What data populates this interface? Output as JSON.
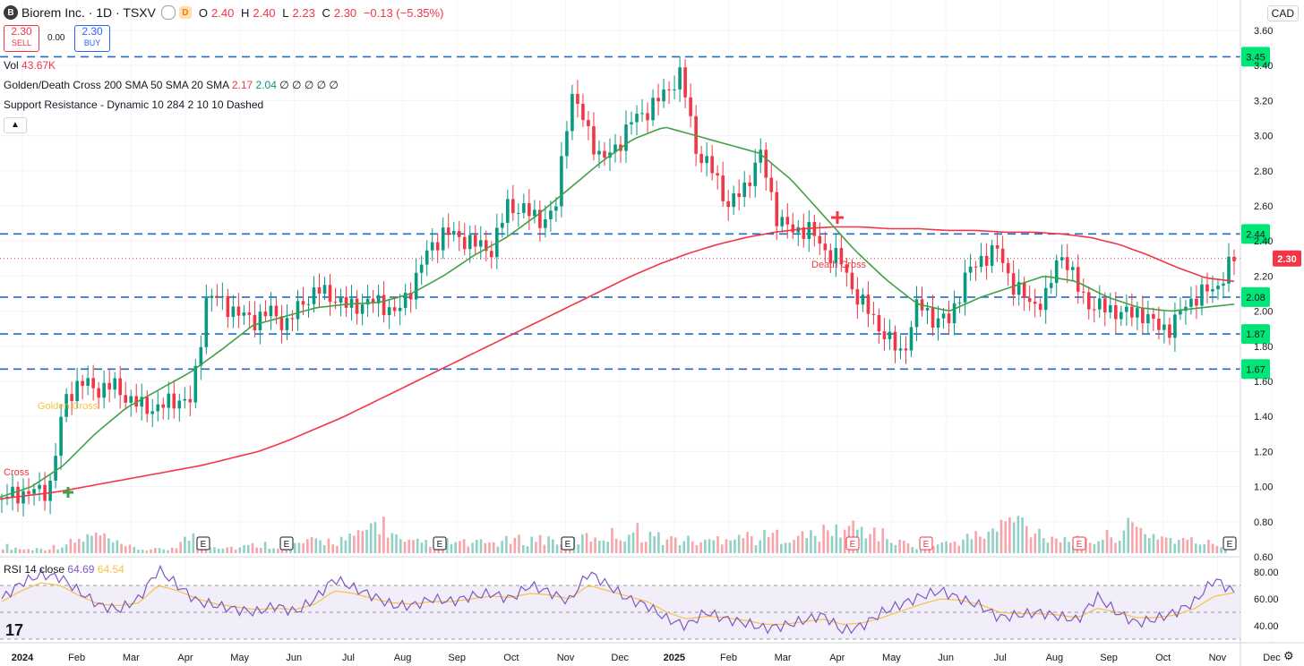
{
  "header": {
    "logo_letter": "B",
    "title": "Biorem Inc. · 1D · TSXV",
    "d_badge": "D",
    "o_label": "O",
    "o_value": "2.40",
    "h_label": "H",
    "h_value": "2.40",
    "l_label": "L",
    "l_value": "2.23",
    "c_label": "C",
    "c_value": "2.30",
    "change": "−0.13 (−5.35%)"
  },
  "trade": {
    "sell_price": "2.30",
    "sell_label": "SELL",
    "spread": "0.00",
    "buy_price": "2.30",
    "buy_label": "BUY"
  },
  "indicators": {
    "vol_label": "Vol",
    "vol_value": "43.67K",
    "gdc_label": "Golden/Death Cross",
    "gdc_params": "200 SMA 50 SMA 20 SMA",
    "gdc_val1": "2.17",
    "gdc_val2": "2.04",
    "gdc_empty": "∅ ∅ ∅ ∅ ∅",
    "sr_label": "Support Resistance - Dynamic",
    "sr_params": "10 284 2 10 10 Dashed",
    "collapse_icon": "chevron-up-icon"
  },
  "currency": "CAD",
  "price_axis": [
    "3.60",
    "3.40",
    "3.20",
    "3.00",
    "2.80",
    "2.60",
    "2.40",
    "2.20",
    "2.00",
    "1.80",
    "1.60",
    "1.40",
    "1.20",
    "1.00",
    "0.80",
    "0.60"
  ],
  "sr_levels": [
    {
      "value": 3.45,
      "label": "3.45"
    },
    {
      "value": 2.44,
      "label": "2.44"
    },
    {
      "value": 2.08,
      "label": "2.08"
    },
    {
      "value": 1.87,
      "label": "1.87"
    },
    {
      "value": 1.67,
      "label": "1.67"
    }
  ],
  "last_price": {
    "value": 2.3,
    "label": "2.30",
    "color": "#f23645"
  },
  "time_axis": [
    "2024",
    "Feb",
    "Mar",
    "Apr",
    "May",
    "Jun",
    "Jul",
    "Aug",
    "Sep",
    "Oct",
    "Nov",
    "Dec",
    "2025",
    "Feb",
    "Mar",
    "Apr",
    "May",
    "Jun",
    "Jul",
    "Aug",
    "Sep",
    "Oct",
    "Nov",
    "Dec"
  ],
  "annotations": {
    "cross": "Cross",
    "golden_cross": "Golden Cross",
    "death_cross": "Death Cross"
  },
  "earnings_markers": [
    "E",
    "E",
    "E",
    "E",
    "E",
    "E",
    "E",
    "E",
    "E"
  ],
  "rsi": {
    "label": "RSI 14 close",
    "value": "64.69",
    "ma_value": "64.54",
    "axis": [
      "80.00",
      "60.00",
      "40.00"
    ]
  },
  "colors": {
    "up": "#089981",
    "down": "#f23645",
    "sma200": "#f23645",
    "sma50": "#43a047",
    "sr_line": "#1e6ec8",
    "sr_label_bg": "#00e676",
    "rsi": "#7e57c2",
    "rsi_ma": "#f6c343",
    "rsi_band": "#ede7f6"
  },
  "chart_data": {
    "type": "candlestick",
    "title": "Biorem Inc. · 1D · TSXV",
    "ylim": [
      0.6,
      3.6
    ],
    "x_labels": [
      "2024",
      "Feb",
      "Mar",
      "Apr",
      "May",
      "Jun",
      "Jul",
      "Aug",
      "Sep",
      "Oct",
      "Nov",
      "Dec",
      "2025",
      "Feb",
      "Mar",
      "Apr",
      "May",
      "Jun",
      "Jul",
      "Aug",
      "Sep",
      "Oct",
      "Nov",
      "Dec"
    ],
    "price_path_weekly_close": [
      0.93,
      0.96,
      0.97,
      0.98,
      1.5,
      1.6,
      1.55,
      1.58,
      1.5,
      1.45,
      1.45,
      1.5,
      1.48,
      2.1,
      2.05,
      1.98,
      1.95,
      2.0,
      1.92,
      2.05,
      2.12,
      2.08,
      2.02,
      2.05,
      2.05,
      1.98,
      2.15,
      2.35,
      2.45,
      2.42,
      2.38,
      2.35,
      2.6,
      2.58,
      2.52,
      2.55,
      3.25,
      3.05,
      2.85,
      2.95,
      3.1,
      3.15,
      3.25,
      3.35,
      2.9,
      2.8,
      2.6,
      2.7,
      2.9,
      2.55,
      2.45,
      2.48,
      2.35,
      2.3,
      2.1,
      1.98,
      1.85,
      1.75,
      2.05,
      1.95,
      1.95,
      2.2,
      2.3,
      2.35,
      2.15,
      2.05,
      2.05,
      2.35,
      2.15,
      2.02,
      2.02,
      1.98,
      2.0,
      1.92,
      1.9,
      2.05,
      2.1,
      2.15,
      2.3
    ],
    "sma200_path": [
      0.93,
      0.95,
      0.97,
      1.0,
      1.03,
      1.06,
      1.09,
      1.12,
      1.16,
      1.2,
      1.26,
      1.33,
      1.4,
      1.48,
      1.56,
      1.64,
      1.72,
      1.8,
      1.88,
      1.96,
      2.04,
      2.12,
      2.2,
      2.27,
      2.33,
      2.38,
      2.42,
      2.45,
      2.47,
      2.48,
      2.48,
      2.47,
      2.47,
      2.46,
      2.46,
      2.45,
      2.45,
      2.44,
      2.42,
      2.38,
      2.32,
      2.25,
      2.19,
      2.17
    ],
    "sma50_path": [
      0.94,
      1.0,
      1.12,
      1.3,
      1.45,
      1.55,
      1.65,
      1.78,
      1.92,
      1.97,
      2.02,
      2.04,
      2.05,
      2.1,
      2.2,
      2.32,
      2.42,
      2.55,
      2.7,
      2.85,
      2.98,
      3.05,
      3.0,
      2.95,
      2.9,
      2.75,
      2.55,
      2.35,
      2.18,
      2.04,
      2.0,
      2.08,
      2.14,
      2.2,
      2.17,
      2.08,
      2.02,
      2.0,
      2.02,
      2.04
    ],
    "volume_profile": [
      0.2,
      0.1,
      0.15,
      0.3,
      0.5,
      0.2,
      0.1,
      0.1,
      0.45,
      0.2,
      0.15,
      0.25,
      0.2,
      0.3,
      0.35,
      0.4,
      0.9,
      0.25,
      0.3,
      0.3,
      0.25,
      0.3,
      0.35,
      0.4,
      0.3,
      0.45,
      0.5,
      0.6,
      0.4,
      0.35,
      0.3,
      0.55,
      0.4,
      0.5,
      0.45,
      0.55,
      0.7,
      0.6,
      0.3,
      0.2,
      0.25,
      0.4,
      0.55,
      0.95,
      0.6,
      0.4,
      0.3,
      0.45,
      0.7,
      0.5,
      0.35,
      0.3,
      0.2
    ],
    "rsi_path": [
      60,
      72,
      78,
      76,
      65,
      55,
      52,
      60,
      82,
      70,
      58,
      55,
      52,
      50,
      55,
      50,
      60,
      75,
      68,
      62,
      55,
      55,
      60,
      58,
      62,
      64,
      60,
      70,
      65,
      58,
      80,
      70,
      60,
      55,
      45,
      40,
      50,
      45,
      42,
      38,
      40,
      44,
      48,
      36,
      40,
      50,
      56,
      62,
      66,
      60,
      55,
      46,
      48,
      50,
      47,
      44,
      62,
      50,
      42,
      45,
      50,
      58,
      75,
      64.69
    ],
    "rsi_ma_path": [
      58,
      66,
      72,
      70,
      62,
      56,
      55,
      57,
      70,
      66,
      60,
      56,
      54,
      52,
      53,
      52,
      56,
      66,
      64,
      60,
      57,
      56,
      58,
      58,
      60,
      62,
      61,
      64,
      63,
      60,
      70,
      66,
      62,
      58,
      50,
      45,
      47,
      46,
      44,
      41,
      41,
      43,
      45,
      41,
      42,
      46,
      51,
      56,
      60,
      59,
      56,
      50,
      49,
      49,
      48,
      46,
      53,
      50,
      46,
      46,
      48,
      53,
      62,
      64.54
    ],
    "rsi_ylim": [
      30,
      90
    ],
    "rsi_levels": [
      70,
      50,
      30
    ]
  }
}
